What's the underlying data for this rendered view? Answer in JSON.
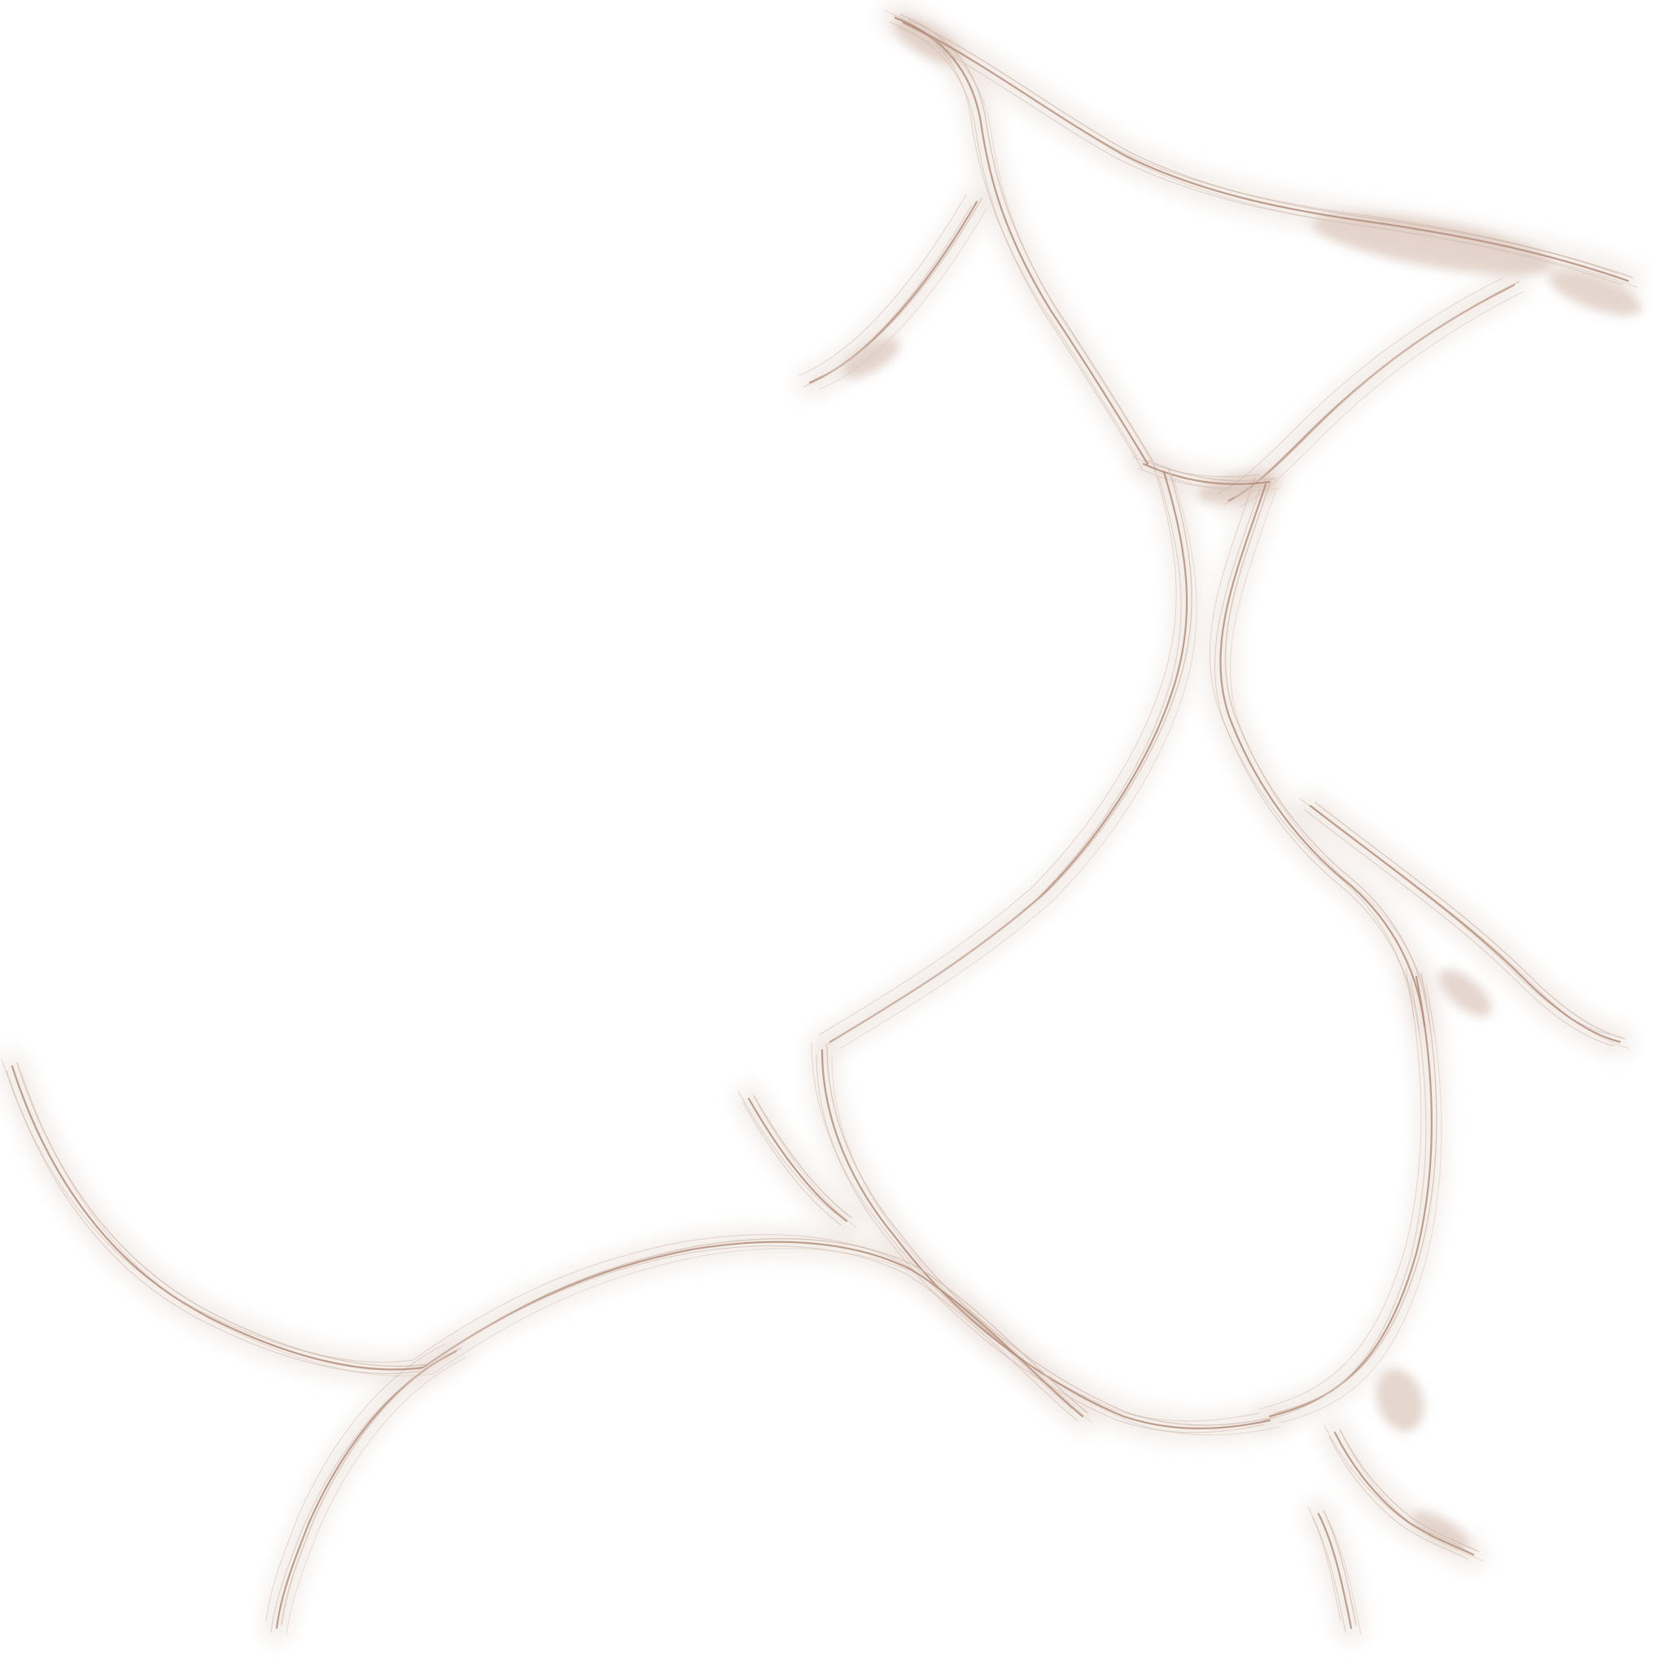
{
  "colors": {
    "background": "#ffffff",
    "haze": "#e9ddd6",
    "strand_light": "#d2bcb0",
    "strand_dark": "#b48e7c",
    "blot": "#dcc8bd"
  }
}
